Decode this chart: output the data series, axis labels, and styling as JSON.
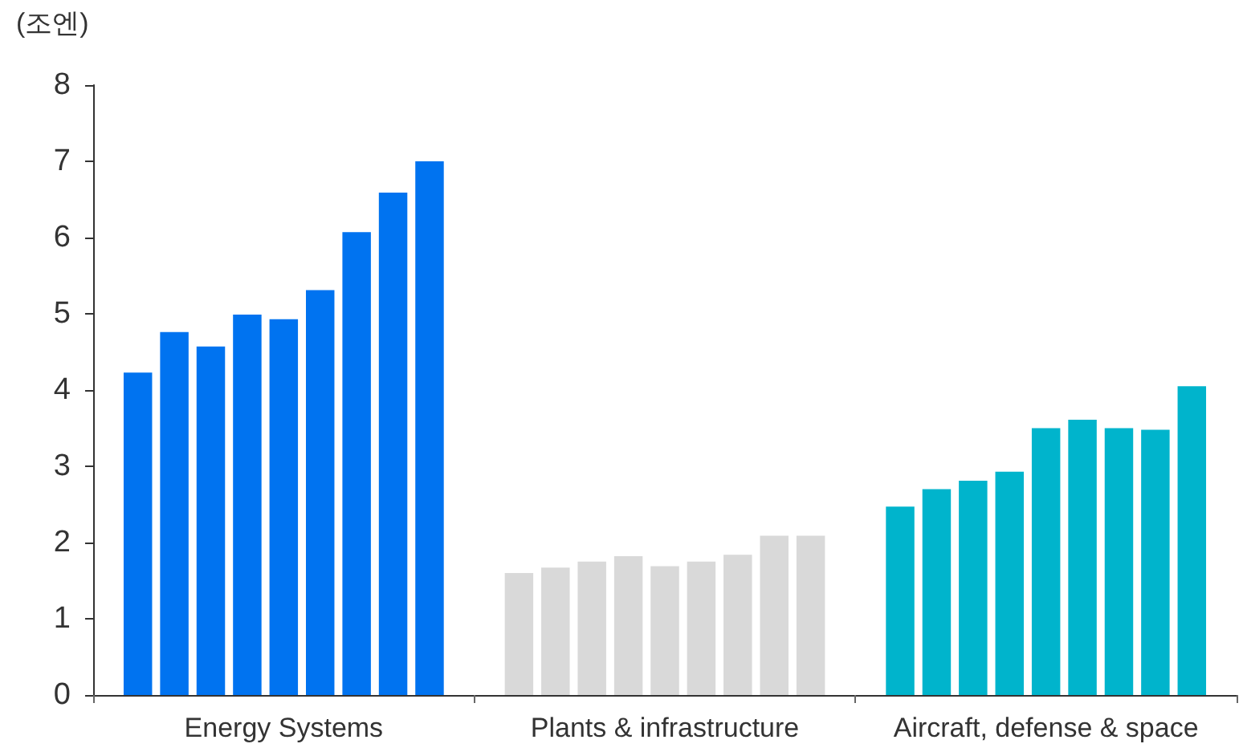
{
  "chart_data": {
    "type": "bar",
    "ylabel": "(조엔)",
    "categories": [
      "Energy Systems",
      "Plants & infrastructure",
      "Aircraft, defense & space"
    ],
    "series": [
      {
        "colors": [
          "#0073f0",
          "#d9d9d9",
          "#00b4cc"
        ],
        "values": [
          4.23,
          1.6,
          2.47
        ]
      },
      {
        "colors": [
          "#0073f0",
          "#d9d9d9",
          "#00b4cc"
        ],
        "values": [
          4.76,
          1.67,
          2.7
        ]
      },
      {
        "colors": [
          "#0073f0",
          "#d9d9d9",
          "#00b4cc"
        ],
        "values": [
          4.57,
          1.75,
          2.81
        ]
      },
      {
        "colors": [
          "#0073f0",
          "#d9d9d9",
          "#00b4cc"
        ],
        "values": [
          4.99,
          1.82,
          2.93
        ]
      },
      {
        "colors": [
          "#0073f0",
          "#d9d9d9",
          "#00b4cc"
        ],
        "values": [
          4.93,
          1.69,
          3.5
        ]
      },
      {
        "colors": [
          "#0073f0",
          "#d9d9d9",
          "#00b4cc"
        ],
        "values": [
          5.31,
          1.75,
          3.61
        ]
      },
      {
        "colors": [
          "#0073f0",
          "#d9d9d9",
          "#00b4cc"
        ],
        "values": [
          6.07,
          1.84,
          3.5
        ]
      },
      {
        "colors": [
          "#0073f0",
          "#d9d9d9",
          "#00b4cc"
        ],
        "values": [
          6.59,
          2.09,
          3.48
        ]
      },
      {
        "colors": [
          "#0073f0",
          "#d9d9d9",
          "#00b4cc"
        ],
        "values": [
          7.0,
          2.09,
          4.05
        ]
      }
    ],
    "ylim": [
      0,
      8
    ],
    "yticks": [
      0,
      1,
      2,
      3,
      4,
      5,
      6,
      7,
      8
    ],
    "grid": false
  }
}
